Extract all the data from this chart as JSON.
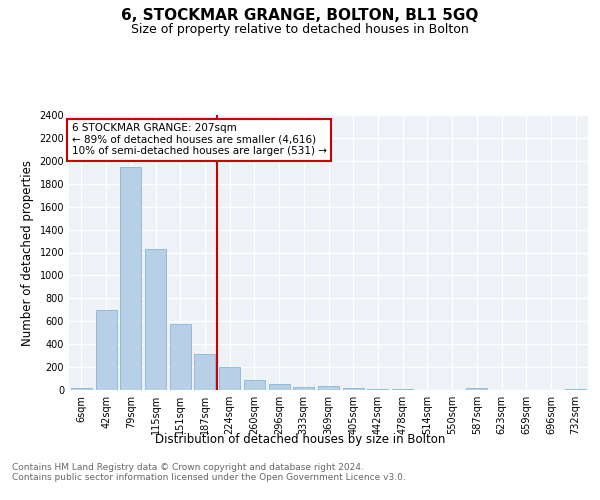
{
  "title": "6, STOCKMAR GRANGE, BOLTON, BL1 5GQ",
  "subtitle": "Size of property relative to detached houses in Bolton",
  "xlabel": "Distribution of detached houses by size in Bolton",
  "ylabel": "Number of detached properties",
  "bar_color": "#b8cfe8",
  "bar_edge_color": "#7aaed0",
  "categories": [
    "6sqm",
    "42sqm",
    "79sqm",
    "115sqm",
    "151sqm",
    "187sqm",
    "224sqm",
    "260sqm",
    "296sqm",
    "333sqm",
    "369sqm",
    "405sqm",
    "442sqm",
    "478sqm",
    "514sqm",
    "550sqm",
    "587sqm",
    "623sqm",
    "659sqm",
    "696sqm",
    "732sqm"
  ],
  "values": [
    15,
    700,
    1950,
    1230,
    580,
    310,
    200,
    85,
    50,
    30,
    35,
    15,
    5,
    10,
    2,
    1,
    15,
    1,
    1,
    1,
    5
  ],
  "ylim": [
    0,
    2400
  ],
  "yticks": [
    0,
    200,
    400,
    600,
    800,
    1000,
    1200,
    1400,
    1600,
    1800,
    2000,
    2200,
    2400
  ],
  "property_line_x": 5.5,
  "annotation_line1": "6 STOCKMAR GRANGE: 207sqm",
  "annotation_line2": "← 89% of detached houses are smaller (4,616)",
  "annotation_line3": "10% of semi-detached houses are larger (531) →",
  "annotation_box_color": "#cc0000",
  "footer_text": "Contains HM Land Registry data © Crown copyright and database right 2024.\nContains public sector information licensed under the Open Government Licence v3.0.",
  "background_color": "#eef2f7",
  "grid_color": "#ffffff",
  "title_fontsize": 11,
  "subtitle_fontsize": 9,
  "axis_label_fontsize": 8.5,
  "tick_fontsize": 7,
  "footer_fontsize": 6.5,
  "annotation_fontsize": 7.5
}
